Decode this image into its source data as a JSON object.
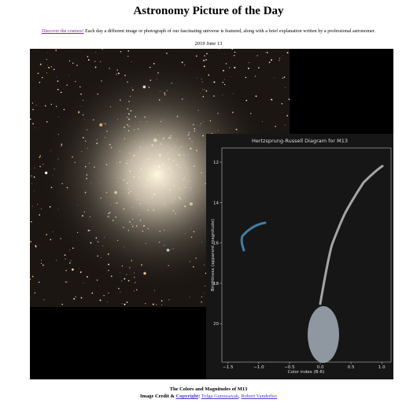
{
  "header": {
    "title": "Astronomy Picture of the Day",
    "intro_link": "Discover the cosmos!",
    "intro_text": " Each day a different image or photograph of our fascinating universe is featured, along with a brief explanation written by a professional astronomer."
  },
  "date": "2019 June 13",
  "image": {
    "inset_chart": {
      "type": "scatter",
      "title": "Hertzsprung-Russell Diagram for M13",
      "x_label": "Color index (B-R)",
      "y_label": "Brightness (apparent magnitude)",
      "xlim": [
        -1.6,
        1.15
      ],
      "xticks": [
        {
          "value": -1.5,
          "label": "−1.5"
        },
        {
          "value": -1.0,
          "label": "−1.0"
        },
        {
          "value": -0.5,
          "label": "−0.5"
        },
        {
          "value": 0.0,
          "label": "0.0"
        },
        0.5,
        {
          "value": 1.0,
          "label": "1.0"
        }
      ],
      "ylim": [
        21.9,
        11.3
      ],
      "yticks": [
        12,
        14,
        16,
        18,
        20
      ]
    }
  },
  "caption": {
    "title": "The Colors and Magnitudes of M13",
    "credit_label": "Image Credit &",
    "copyright_link": "Copyright",
    "after_link": ":",
    "names": [
      "Tolga Gumusayak",
      "Robert Vanderbei"
    ],
    "name_separator": ", "
  }
}
